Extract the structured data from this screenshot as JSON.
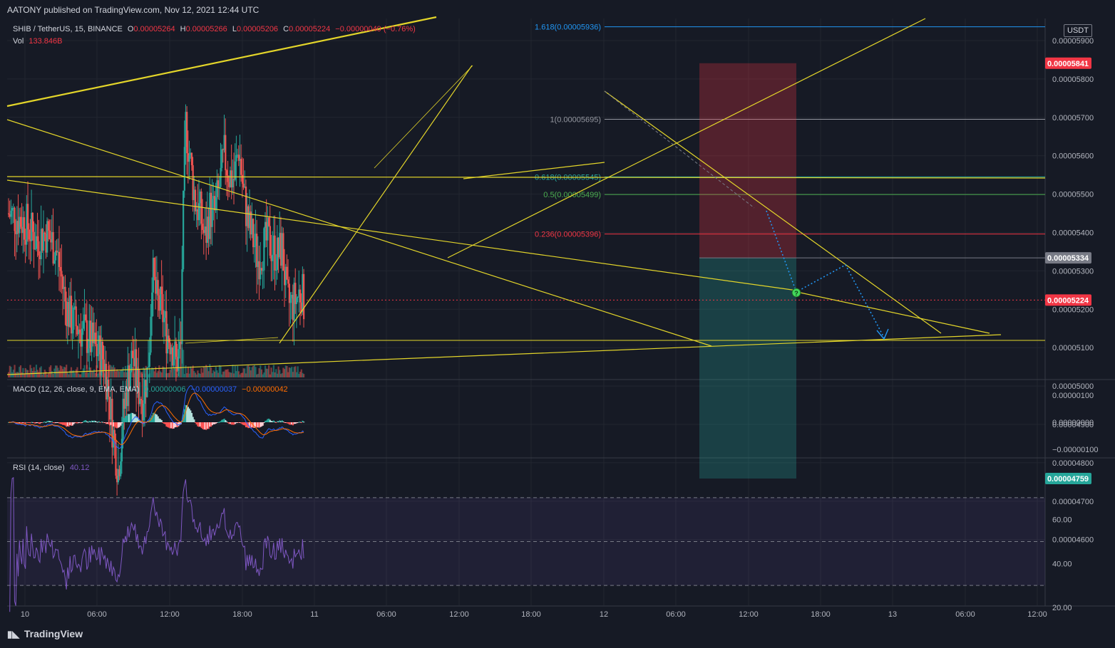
{
  "header": {
    "published": "AATONY published on TradingView.com, Nov 12, 2021 12:44 UTC"
  },
  "legend": {
    "symbol": "SHIB / TetherUS, 15, BINANCE",
    "o_label": "O",
    "o_value": "0.00005264",
    "h_label": "H",
    "h_value": "0.00005266",
    "l_label": "L",
    "l_value": "0.00005206",
    "c_label": "C",
    "c_value": "0.00005224",
    "change": "−0.00000040 (−0.76%)",
    "vol_label": "Vol",
    "vol_value": "133.846B"
  },
  "macd_legend": {
    "label": "MACD (12, 26, close, 9, EMA, EMA)",
    "v1": "0.00000006",
    "v2": "−0.00000037",
    "v3": "−0.00000042"
  },
  "rsi_legend": {
    "label": "RSI (14, close)",
    "value": "40.12"
  },
  "currency_label": "USDT",
  "brand": {
    "name": "TradingView",
    "logo_icon": "tradingview-logo-icon"
  },
  "colors": {
    "up": "#26a69a",
    "down": "#ef5350",
    "trend": "#e3d52a",
    "rsi": "#7e57c2",
    "macd": "#2962ff",
    "signal": "#ff6d00",
    "fib_blue": "#2196f3"
  },
  "chart_data": [
    {
      "type": "candlestick",
      "title": "SHIB / TetherUS, 15, BINANCE",
      "x_ticks": [
        "10",
        "06:00",
        "12:00",
        "18:00",
        "11",
        "06:00",
        "12:00",
        "18:00",
        "12",
        "06:00",
        "12:00",
        "18:00",
        "13",
        "06:00",
        "12:00"
      ],
      "y_ticks": [
        "0.00005900",
        "0.00005800",
        "0.00005700",
        "0.00005600",
        "0.00005500",
        "0.00005400",
        "0.00005300",
        "0.00005200",
        "0.00005100",
        "0.00005000",
        "0.00004900",
        "0.00004800",
        "0.00004700",
        "0.00004600"
      ],
      "ylim": [
        4.57e-05,
        5.96e-05
      ],
      "price_path": [
        [
          0,
          5.45e-05
        ],
        [
          2,
          5.44e-05
        ],
        [
          4,
          5.42e-05
        ],
        [
          6,
          5.38e-05
        ],
        [
          8,
          5.4e-05
        ],
        [
          10,
          5.36e-05
        ],
        [
          11,
          5.3e-05
        ],
        [
          12,
          5.22e-05
        ],
        [
          13,
          5.18e-05
        ],
        [
          14,
          5.16e-05
        ],
        [
          16,
          5.14e-05
        ],
        [
          18,
          5.1e-05
        ],
        [
          20,
          5.07e-05
        ],
        [
          21,
          4.98e-05
        ],
        [
          22,
          4.87e-05
        ],
        [
          23,
          4.78e-05
        ],
        [
          24,
          4.92e-05
        ],
        [
          25,
          5.02e-05
        ],
        [
          26,
          5.08e-05
        ],
        [
          27,
          5e-05
        ],
        [
          28,
          4.97e-05
        ],
        [
          29,
          5.03e-05
        ],
        [
          29.5,
          5.12e-05
        ],
        [
          30,
          5.3e-05
        ],
        [
          31,
          5.22e-05
        ],
        [
          32,
          5.2e-05
        ],
        [
          33,
          5.14e-05
        ],
        [
          34,
          5.12e-05
        ],
        [
          35,
          5.06e-05
        ],
        [
          36,
          5.1e-05
        ],
        [
          36.3,
          5.36e-05
        ],
        [
          37,
          5.68e-05
        ],
        [
          38,
          5.58e-05
        ],
        [
          39,
          5.48e-05
        ],
        [
          40,
          5.45e-05
        ],
        [
          41,
          5.38e-05
        ],
        [
          42,
          5.46e-05
        ],
        [
          43,
          5.45e-05
        ],
        [
          44,
          5.52e-05
        ],
        [
          45,
          5.6e-05
        ],
        [
          46,
          5.55e-05
        ],
        [
          47,
          5.54e-05
        ],
        [
          48,
          5.62e-05
        ],
        [
          49,
          5.5e-05
        ],
        [
          50,
          5.42e-05
        ],
        [
          51,
          5.38e-05
        ],
        [
          52,
          5.33e-05
        ],
        [
          53,
          5.36e-05
        ],
        [
          54,
          5.38e-05
        ],
        [
          55,
          5.36e-05
        ],
        [
          56,
          5.34e-05
        ],
        [
          57,
          5.36e-05
        ],
        [
          58,
          5.22e-05
        ],
        [
          59,
          5.21e-05
        ],
        [
          60,
          5.23e-05
        ],
        [
          61,
          5.25e-05
        ],
        [
          61.5,
          5.22e-05
        ]
      ],
      "horizontal_levels": [
        {
          "label": "1.618(0.00005936)",
          "value": 5.936e-05
        },
        {
          "label": "1(0.00005695)",
          "value": 5.695e-05
        },
        {
          "label": "0.618(0.00005545)",
          "value": 5.545e-05
        },
        {
          "label": "0.5(0.00005499)",
          "value": 5.499e-05
        },
        {
          "label": "0.236(0.00005396)",
          "value": 5.396e-05
        }
      ],
      "price_badges": [
        {
          "value": "0.00005841",
          "color": "#f23645"
        },
        {
          "value": "0.00005334",
          "color": "#787b86"
        },
        {
          "value": "0.00005224",
          "color": "#f23645"
        },
        {
          "value": "0.00004759",
          "color": "#26a69a"
        }
      ]
    },
    {
      "type": "line",
      "title": "MACD (12, 26, close, 9, EMA, EMA)",
      "y_ticks": [
        "0.00000100",
        "0.00000000",
        "−0.00000100"
      ],
      "ylim": [
        -1.1e-06,
        1.3e-06
      ]
    },
    {
      "type": "line",
      "title": "RSI (14, close)",
      "y_ticks": [
        "80.00",
        "60.00",
        "40.00",
        "20.00"
      ],
      "ylim": [
        15,
        85
      ],
      "band": [
        30,
        70
      ],
      "midline": 50
    }
  ]
}
